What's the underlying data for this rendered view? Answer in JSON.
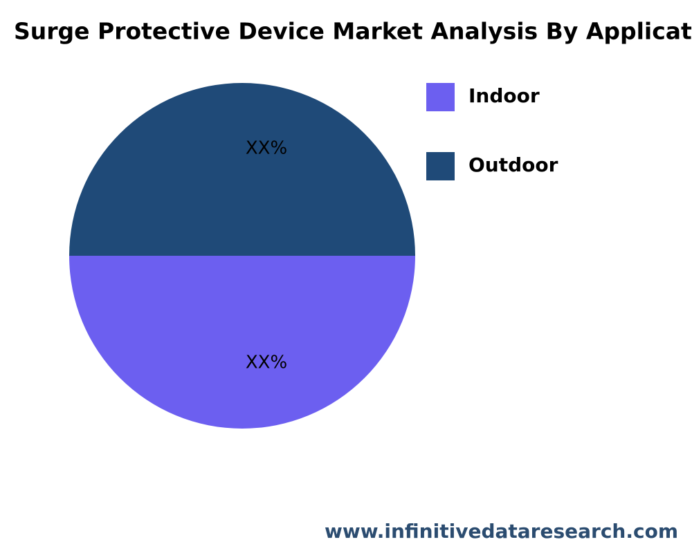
{
  "chart_data": {
    "type": "pie",
    "title": "Surge Protective Device Market Analysis By Application",
    "categories": [
      "Indoor",
      "Outdoor"
    ],
    "values": [
      50,
      50
    ],
    "value_labels": [
      "XX%",
      "XX%"
    ],
    "colors": [
      "#6c5ff0",
      "#1f4a78"
    ],
    "legend": "right",
    "source": "www.infinitivedataresearch.com"
  }
}
